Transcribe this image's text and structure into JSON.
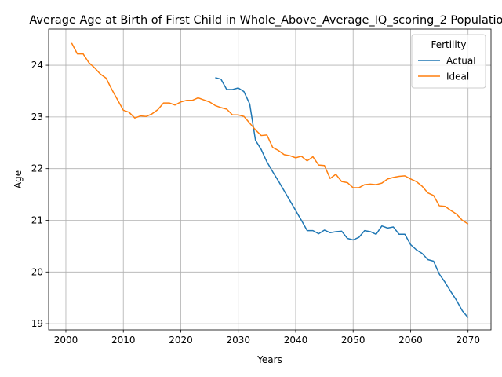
{
  "chart_data": {
    "type": "line",
    "title": "Average Age at Birth of First Child in Whole_Above_Average_IQ_scoring_2 Population",
    "xlabel": "Years",
    "ylabel": "Age",
    "xlim": [
      1997,
      2074
    ],
    "ylim": [
      18.88,
      24.7
    ],
    "xticks": [
      2000,
      2010,
      2020,
      2030,
      2040,
      2050,
      2060,
      2070
    ],
    "yticks": [
      19,
      20,
      21,
      22,
      23,
      24
    ],
    "grid": true,
    "legend": {
      "title": "Fertility",
      "placement": "top-right"
    },
    "series": [
      {
        "name": "Actual",
        "color": "#1f77b4",
        "x": [
          2026,
          2027,
          2028,
          2029,
          2030,
          2031,
          2032,
          2033,
          2034,
          2035,
          2036,
          2037,
          2038,
          2039,
          2040,
          2041,
          2042,
          2043,
          2044,
          2045,
          2046,
          2047,
          2048,
          2049,
          2050,
          2051,
          2052,
          2053,
          2054,
          2055,
          2056,
          2057,
          2058,
          2059,
          2060,
          2061,
          2062,
          2063,
          2064,
          2065,
          2066,
          2067,
          2068,
          2069,
          2070
        ],
        "y": [
          23.76,
          23.73,
          23.53,
          23.53,
          23.56,
          23.49,
          23.25,
          22.55,
          22.37,
          22.13,
          21.94,
          21.76,
          21.57,
          21.38,
          21.19,
          21.0,
          20.8,
          20.8,
          20.74,
          20.81,
          20.76,
          20.78,
          20.79,
          20.65,
          20.62,
          20.67,
          20.8,
          20.78,
          20.73,
          20.89,
          20.85,
          20.87,
          20.73,
          20.73,
          20.53,
          20.43,
          20.36,
          20.24,
          20.21,
          19.96,
          19.8,
          19.62,
          19.45,
          19.25,
          19.12
        ]
      },
      {
        "name": "Ideal",
        "color": "#ff7f0e",
        "x": [
          2001,
          2002,
          2003,
          2004,
          2005,
          2006,
          2007,
          2008,
          2009,
          2010,
          2011,
          2012,
          2013,
          2014,
          2015,
          2016,
          2017,
          2018,
          2019,
          2020,
          2021,
          2022,
          2023,
          2024,
          2025,
          2026,
          2027,
          2028,
          2029,
          2030,
          2031,
          2032,
          2033,
          2034,
          2035,
          2036,
          2037,
          2038,
          2039,
          2040,
          2041,
          2042,
          2043,
          2044,
          2045,
          2046,
          2047,
          2048,
          2049,
          2050,
          2051,
          2052,
          2053,
          2054,
          2055,
          2056,
          2057,
          2058,
          2059,
          2060,
          2061,
          2062,
          2063,
          2064,
          2065,
          2066,
          2067,
          2068,
          2069,
          2070
        ],
        "y": [
          24.43,
          24.22,
          24.22,
          24.05,
          23.95,
          23.83,
          23.75,
          23.53,
          23.33,
          23.13,
          23.09,
          22.98,
          23.02,
          23.01,
          23.06,
          23.14,
          23.27,
          23.27,
          23.23,
          23.29,
          23.32,
          23.32,
          23.37,
          23.33,
          23.29,
          23.22,
          23.18,
          23.15,
          23.04,
          23.04,
          23.01,
          22.88,
          22.75,
          22.64,
          22.65,
          22.41,
          22.35,
          22.27,
          22.25,
          22.21,
          22.24,
          22.15,
          22.23,
          22.07,
          22.06,
          21.81,
          21.89,
          21.75,
          21.73,
          21.63,
          21.63,
          21.69,
          21.7,
          21.69,
          21.72,
          21.8,
          21.83,
          21.85,
          21.86,
          21.8,
          21.75,
          21.66,
          21.53,
          21.48,
          21.28,
          21.27,
          21.19,
          21.12,
          21.0,
          20.93
        ]
      }
    ]
  }
}
